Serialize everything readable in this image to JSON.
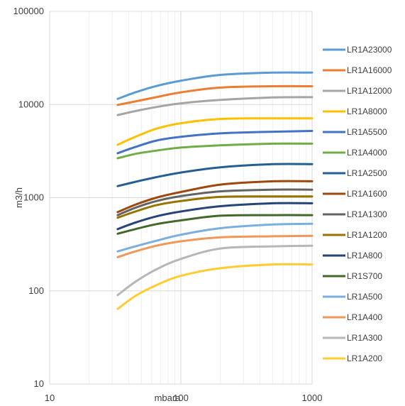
{
  "chart_data": {
    "type": "line",
    "title": "",
    "xlabel": "mbara",
    "ylabel": "m3/h",
    "xscale": "log",
    "yscale": "log",
    "xlim": [
      10,
      1000
    ],
    "ylim": [
      10,
      100000
    ],
    "grid": true,
    "legend_position": "right",
    "x_ticks": [
      "10",
      "100",
      "1000"
    ],
    "y_ticks": [
      "10",
      "100",
      "1000",
      "10000",
      "100000"
    ],
    "series": [
      {
        "name": "LR1A23000",
        "color": "#5b9bd5",
        "points": [
          [
            33,
            11500
          ],
          [
            45,
            13500
          ],
          [
            65,
            15800
          ],
          [
            100,
            18000
          ],
          [
            200,
            20800
          ],
          [
            500,
            22000
          ],
          [
            1000,
            22000
          ]
        ]
      },
      {
        "name": "LR1A16000",
        "color": "#ed7d31",
        "points": [
          [
            33,
            9900
          ],
          [
            45,
            10800
          ],
          [
            65,
            12000
          ],
          [
            100,
            13500
          ],
          [
            200,
            15200
          ],
          [
            500,
            15700
          ],
          [
            1000,
            15700
          ]
        ]
      },
      {
        "name": "LR1A12000",
        "color": "#a5a5a5",
        "points": [
          [
            33,
            7700
          ],
          [
            45,
            8500
          ],
          [
            65,
            9400
          ],
          [
            100,
            10300
          ],
          [
            200,
            11200
          ],
          [
            500,
            11900
          ],
          [
            1000,
            12000
          ]
        ]
      },
      {
        "name": "LR1A8000",
        "color": "#ffc000",
        "points": [
          [
            33,
            3700
          ],
          [
            45,
            4500
          ],
          [
            65,
            5500
          ],
          [
            100,
            6300
          ],
          [
            200,
            7000
          ],
          [
            500,
            7100
          ],
          [
            1000,
            7100
          ]
        ]
      },
      {
        "name": "LR1A5500",
        "color": "#4472c4",
        "points": [
          [
            33,
            3000
          ],
          [
            45,
            3500
          ],
          [
            65,
            4100
          ],
          [
            100,
            4500
          ],
          [
            200,
            4900
          ],
          [
            500,
            5100
          ],
          [
            1000,
            5200
          ]
        ]
      },
      {
        "name": "LR1A4000",
        "color": "#70ad47",
        "points": [
          [
            33,
            2650
          ],
          [
            45,
            2950
          ],
          [
            65,
            3200
          ],
          [
            100,
            3450
          ],
          [
            200,
            3650
          ],
          [
            500,
            3800
          ],
          [
            1000,
            3800
          ]
        ]
      },
      {
        "name": "LR1A2500",
        "color": "#255e91",
        "points": [
          [
            33,
            1330
          ],
          [
            45,
            1480
          ],
          [
            65,
            1660
          ],
          [
            100,
            1860
          ],
          [
            200,
            2120
          ],
          [
            500,
            2290
          ],
          [
            1000,
            2290
          ]
        ]
      },
      {
        "name": "LR1A1600",
        "color": "#9e480e",
        "points": [
          [
            33,
            700
          ],
          [
            45,
            840
          ],
          [
            65,
            1000
          ],
          [
            100,
            1150
          ],
          [
            200,
            1380
          ],
          [
            500,
            1500
          ],
          [
            1000,
            1500
          ]
        ]
      },
      {
        "name": "LR1A1300",
        "color": "#636363",
        "points": [
          [
            33,
            650
          ],
          [
            45,
            780
          ],
          [
            65,
            920
          ],
          [
            100,
            1040
          ],
          [
            200,
            1170
          ],
          [
            500,
            1220
          ],
          [
            1000,
            1220
          ]
        ]
      },
      {
        "name": "LR1A1200",
        "color": "#997300",
        "points": [
          [
            33,
            610
          ],
          [
            45,
            710
          ],
          [
            65,
            830
          ],
          [
            100,
            920
          ],
          [
            200,
            1020
          ],
          [
            500,
            1030
          ],
          [
            1000,
            1030
          ]
        ]
      },
      {
        "name": "LR1A800",
        "color": "#264478",
        "points": [
          [
            33,
            460
          ],
          [
            45,
            540
          ],
          [
            65,
            630
          ],
          [
            100,
            710
          ],
          [
            200,
            810
          ],
          [
            500,
            870
          ],
          [
            1000,
            870
          ]
        ]
      },
      {
        "name": "LR1S700",
        "color": "#43682b",
        "points": [
          [
            33,
            410
          ],
          [
            45,
            460
          ],
          [
            65,
            520
          ],
          [
            100,
            570
          ],
          [
            200,
            640
          ],
          [
            500,
            650
          ],
          [
            1000,
            650
          ]
        ]
      },
      {
        "name": "LR1A500",
        "color": "#7cafdd",
        "points": [
          [
            33,
            265
          ],
          [
            45,
            300
          ],
          [
            65,
            345
          ],
          [
            100,
            400
          ],
          [
            200,
            470
          ],
          [
            500,
            515
          ],
          [
            1000,
            525
          ]
        ]
      },
      {
        "name": "LR1A400",
        "color": "#f1975a",
        "points": [
          [
            33,
            230
          ],
          [
            45,
            265
          ],
          [
            65,
            305
          ],
          [
            100,
            340
          ],
          [
            200,
            375
          ],
          [
            500,
            385
          ],
          [
            1000,
            390
          ]
        ]
      },
      {
        "name": "LR1A300",
        "color": "#b7b7b7",
        "points": [
          [
            33,
            90
          ],
          [
            45,
            125
          ],
          [
            65,
            170
          ],
          [
            100,
            220
          ],
          [
            200,
            285
          ],
          [
            500,
            300
          ],
          [
            1000,
            305
          ]
        ]
      },
      {
        "name": "LR1A200",
        "color": "#ffcd33",
        "points": [
          [
            33,
            64
          ],
          [
            45,
            88
          ],
          [
            65,
            115
          ],
          [
            100,
            145
          ],
          [
            200,
            175
          ],
          [
            500,
            192
          ],
          [
            1000,
            192
          ]
        ]
      }
    ]
  }
}
